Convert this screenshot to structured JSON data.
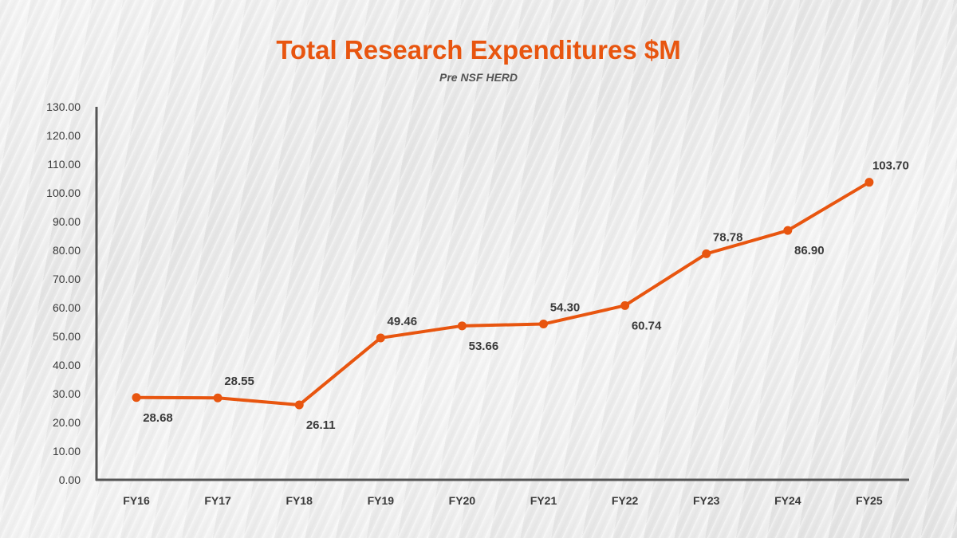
{
  "colors": {
    "accent": "#E8550F",
    "axis": "#555555",
    "label": "#3a3a3a"
  },
  "chart_data": {
    "type": "line",
    "title": "Total Research Expenditures $M",
    "subtitle": "Pre NSF HERD",
    "xlabel": "",
    "ylabel": "",
    "categories": [
      "FY16",
      "FY17",
      "FY18",
      "FY19",
      "FY20",
      "FY21",
      "FY22",
      "FY23",
      "FY24",
      "FY25"
    ],
    "series": [
      {
        "name": "Total Research Expenditures",
        "values": [
          28.68,
          28.55,
          26.11,
          49.46,
          53.66,
          54.3,
          60.74,
          78.78,
          86.9,
          103.7
        ],
        "data_labels": [
          "28.68",
          "28.55",
          "26.11",
          "49.46",
          "53.66",
          "54.30",
          "60.74",
          "78.78",
          "86.90",
          "103.70"
        ],
        "label_positions": [
          "below",
          "above",
          "below",
          "above",
          "below",
          "above",
          "below",
          "above",
          "below",
          "above"
        ]
      }
    ],
    "ylim": [
      0,
      130
    ],
    "yticks": [
      0,
      10,
      20,
      30,
      40,
      50,
      60,
      70,
      80,
      90,
      100,
      110,
      120,
      130
    ],
    "ytick_labels": [
      "0.00",
      "10.00",
      "20.00",
      "30.00",
      "40.00",
      "50.00",
      "60.00",
      "70.00",
      "80.00",
      "90.00",
      "100.00",
      "110.00",
      "120.00",
      "130.00"
    ],
    "grid": false,
    "legend": "none"
  }
}
